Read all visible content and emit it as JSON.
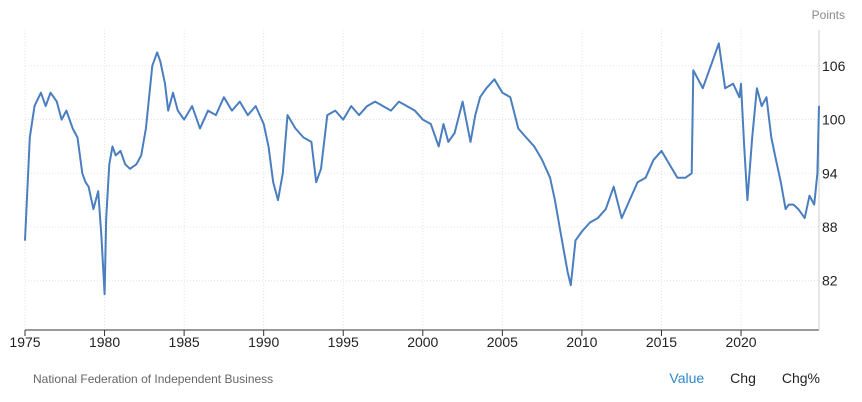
{
  "unit_label": "Points",
  "source": "National Federation of Independent Business",
  "tabs": [
    {
      "label": "Value",
      "active": true
    },
    {
      "label": "Chg",
      "active": false
    },
    {
      "label": "Chg%",
      "active": false
    }
  ],
  "colors": {
    "line": "#4a7ebf",
    "grid": "#e2e2e2",
    "axis": "#333333",
    "active_tab": "#2f88c8"
  },
  "chart_data": {
    "type": "line",
    "title": "",
    "xlabel": "",
    "ylabel": "Points",
    "grid": true,
    "xlim": [
      1975,
      2024.9
    ],
    "ylim": [
      76.5,
      110
    ],
    "x_ticks": [
      1975,
      1980,
      1985,
      1990,
      1995,
      2000,
      2005,
      2010,
      2015,
      2020
    ],
    "y_ticks": [
      82,
      88,
      94,
      100,
      106
    ],
    "series": [
      {
        "x": [
          1975.0,
          1975.3,
          1975.6,
          1976.0,
          1976.3,
          1976.6,
          1977.0,
          1977.3,
          1977.6,
          1978.0,
          1978.3,
          1978.6,
          1978.8,
          1979.0,
          1979.3,
          1979.6,
          1979.8,
          1980.0,
          1980.1,
          1980.3,
          1980.5,
          1980.7,
          1981.0,
          1981.3,
          1981.6,
          1982.0,
          1982.3,
          1982.6,
          1983.0,
          1983.3,
          1983.5,
          1983.8,
          1984.0,
          1984.3,
          1984.6,
          1985.0,
          1985.5,
          1986.0,
          1986.5,
          1987.0,
          1987.5,
          1988.0,
          1988.5,
          1989.0,
          1989.5,
          1990.0,
          1990.3,
          1990.6,
          1990.9,
          1991.2,
          1991.5,
          1992.0,
          1992.5,
          1993.0,
          1993.3,
          1993.6,
          1994.0,
          1994.5,
          1995.0,
          1995.5,
          1996.0,
          1996.5,
          1997.0,
          1997.5,
          1998.0,
          1998.5,
          1999.0,
          1999.5,
          2000.0,
          2000.5,
          2001.0,
          2001.3,
          2001.6,
          2002.0,
          2002.5,
          2003.0,
          2003.3,
          2003.6,
          2004.0,
          2004.5,
          2005.0,
          2005.5,
          2006.0,
          2006.5,
          2007.0,
          2007.5,
          2008.0,
          2008.3,
          2008.6,
          2008.9,
          2009.1,
          2009.3,
          2009.6,
          2010.0,
          2010.5,
          2011.0,
          2011.5,
          2012.0,
          2012.5,
          2013.0,
          2013.5,
          2014.0,
          2014.5,
          2015.0,
          2015.5,
          2016.0,
          2016.5,
          2016.9,
          2017.0,
          2017.3,
          2017.6,
          2018.0,
          2018.3,
          2018.6,
          2019.0,
          2019.5,
          2019.9,
          2020.0,
          2020.2,
          2020.4,
          2020.7,
          2021.0,
          2021.3,
          2021.6,
          2021.9,
          2022.2,
          2022.5,
          2022.8,
          2023.0,
          2023.3,
          2023.6,
          2024.0,
          2024.3,
          2024.6,
          2024.8,
          2024.9
        ],
        "values": [
          86.5,
          98.0,
          101.5,
          103.0,
          101.5,
          103.0,
          102.0,
          100.0,
          101.0,
          99.0,
          98.0,
          94.0,
          93.0,
          92.5,
          90.0,
          92.0,
          87.0,
          80.5,
          89.0,
          95.0,
          97.0,
          96.0,
          96.5,
          95.0,
          94.5,
          95.0,
          96.0,
          99.0,
          106.0,
          107.5,
          106.5,
          104.0,
          101.0,
          103.0,
          101.0,
          100.0,
          101.5,
          99.0,
          101.0,
          100.5,
          102.5,
          101.0,
          102.0,
          100.5,
          101.5,
          99.5,
          97.0,
          93.0,
          91.0,
          94.0,
          100.5,
          99.0,
          98.0,
          97.5,
          93.0,
          94.5,
          100.5,
          101.0,
          100.0,
          101.5,
          100.5,
          101.5,
          102.0,
          101.5,
          101.0,
          102.0,
          101.5,
          101.0,
          100.0,
          99.5,
          97.0,
          99.5,
          97.5,
          98.5,
          102.0,
          97.5,
          100.5,
          102.5,
          103.5,
          104.5,
          103.0,
          102.5,
          99.0,
          98.0,
          97.0,
          95.5,
          93.5,
          91.0,
          88.0,
          85.0,
          83.0,
          81.5,
          86.5,
          87.5,
          88.5,
          89.0,
          90.0,
          92.5,
          89.0,
          91.0,
          93.0,
          93.5,
          95.5,
          96.5,
          95.0,
          93.5,
          93.5,
          94.0,
          105.5,
          104.5,
          103.5,
          105.5,
          107.0,
          108.5,
          103.5,
          104.0,
          102.5,
          104.0,
          97.0,
          91.0,
          98.0,
          103.5,
          101.5,
          102.5,
          98.0,
          95.5,
          93.0,
          90.0,
          90.5,
          90.5,
          90.0,
          89.0,
          91.5,
          90.5,
          94.0,
          101.5
        ]
      }
    ]
  }
}
